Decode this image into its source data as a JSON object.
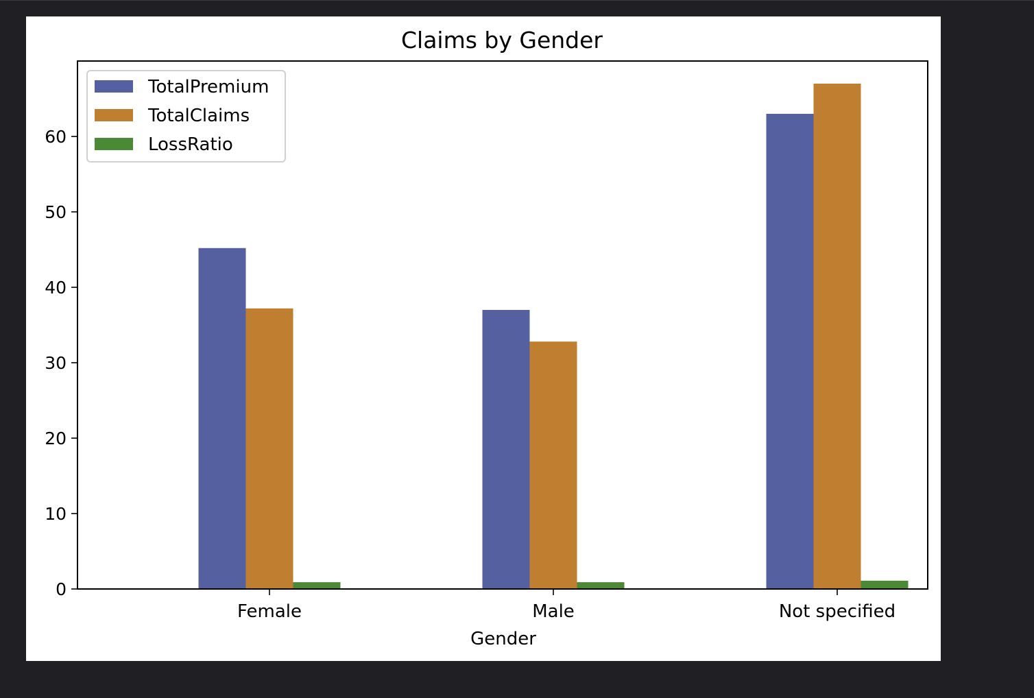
{
  "chart_data": {
    "type": "bar",
    "title": "Claims by Gender",
    "xlabel": "Gender",
    "ylabel": "",
    "categories": [
      "Female",
      "Male",
      "Not specified"
    ],
    "series": [
      {
        "name": "TotalPremium",
        "values": [
          45.2,
          37.0,
          63.0
        ],
        "color": "#5460a0"
      },
      {
        "name": "TotalClaims",
        "values": [
          37.2,
          32.8,
          67.0
        ],
        "color": "#c07f30"
      },
      {
        "name": "LossRatio",
        "values": [
          0.9,
          0.9,
          1.1
        ],
        "color": "#4a8a35"
      }
    ],
    "ylim": [
      0,
      70
    ],
    "yticks": [
      0,
      10,
      20,
      30,
      40,
      50,
      60
    ],
    "grid": false,
    "legend_position": "upper-left"
  }
}
